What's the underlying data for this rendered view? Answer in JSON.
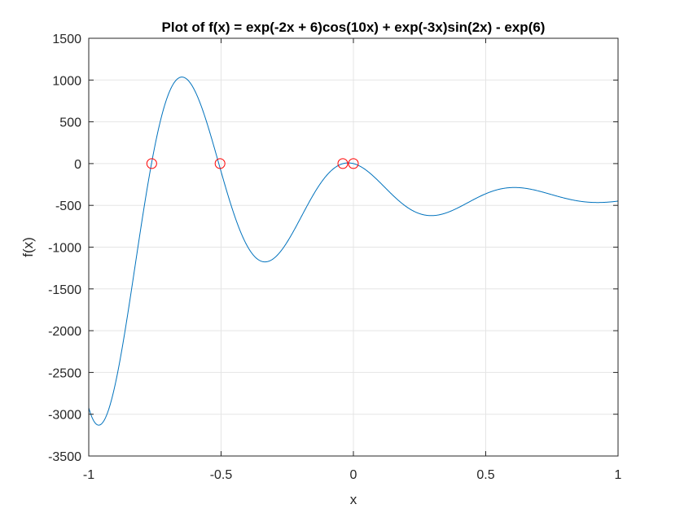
{
  "chart_data": {
    "type": "line",
    "title": "Plot of f(x) = exp(-2x + 6)cos(10x) + exp(-3x)sin(2x) - exp(6)",
    "xlabel": "x",
    "ylabel": "f(x)",
    "xlim": [
      -1,
      1
    ],
    "ylim": [
      -3500,
      1500
    ],
    "x_ticks": [
      "-1",
      "-0.5",
      "0",
      "0.5",
      "1"
    ],
    "y_ticks": [
      "1500",
      "1000",
      "500",
      "0",
      "-500",
      "-1000",
      "-1500",
      "-2000",
      "-2500",
      "-3000",
      "-3500"
    ],
    "grid": true,
    "series": [
      {
        "function": "exp(-2x + 6)cos(10x) + exp(-3x)sin(2x) - exp(6)",
        "color": "#0072BD",
        "x_range": [
          -1,
          1
        ]
      }
    ],
    "markers": {
      "color": "#FF0000",
      "points": [
        {
          "x": -0.762,
          "y": 0
        },
        {
          "x": -0.504,
          "y": 0
        },
        {
          "x": -0.04,
          "y": 0
        },
        {
          "x": 0.0,
          "y": 0
        }
      ]
    },
    "colors": {
      "line": "#0072BD",
      "marker": "#FF0000",
      "grid": "#E5E5E5",
      "axis": "#262626"
    }
  }
}
